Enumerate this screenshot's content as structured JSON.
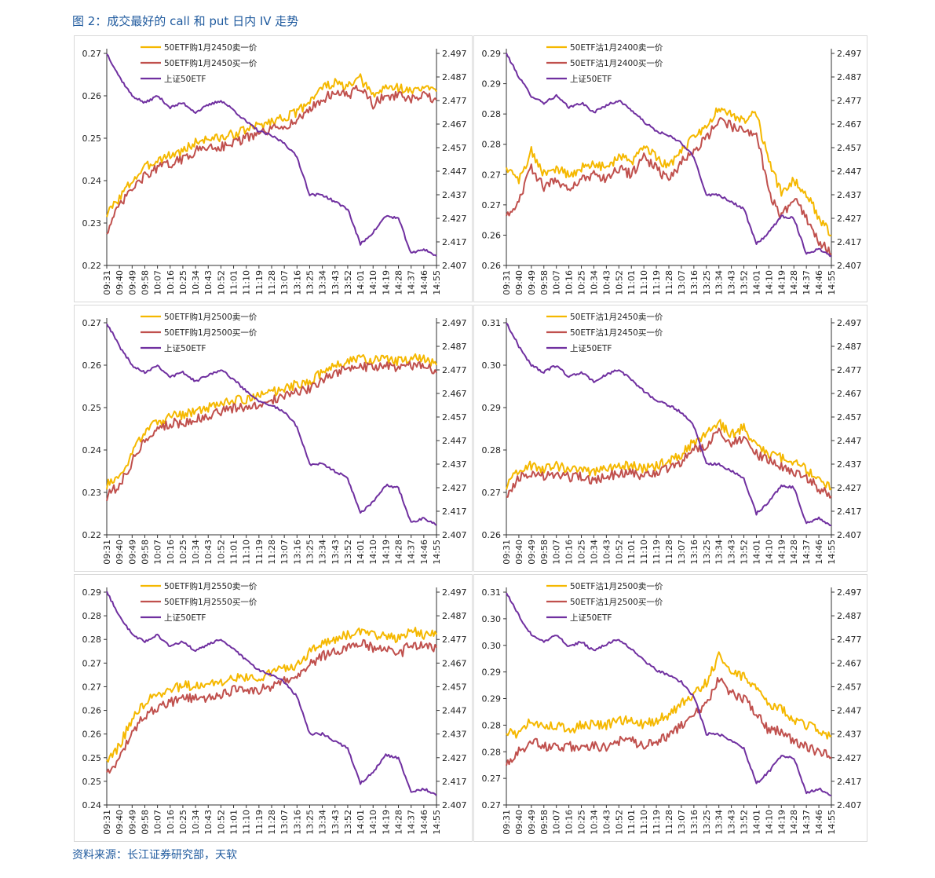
{
  "figure": {
    "title": "图 2：成交最好的 call 和 put 日内 IV 走势",
    "source": "资料来源：长江证券研究部，天软"
  },
  "colors": {
    "yellow": "#f5b800",
    "red": "#c0504d",
    "purple": "#7030a0",
    "title_blue": "#1f5a9e"
  },
  "time_ticks": [
    "09:31",
    "09:40",
    "09:49",
    "09:58",
    "10:07",
    "10:16",
    "10:25",
    "10:34",
    "10:43",
    "10:52",
    "11:01",
    "11:10",
    "11:19",
    "11:28",
    "13:07",
    "13:16",
    "13:25",
    "13:34",
    "13:43",
    "13:52",
    "14:01",
    "14:10",
    "14:19",
    "14:28",
    "14:37",
    "14:46",
    "14:55"
  ],
  "chart_data": [
    {
      "type": "line",
      "panel": "top-left",
      "x": [
        "09:31",
        "09:40",
        "09:49",
        "09:58",
        "10:07",
        "10:16",
        "10:25",
        "10:34",
        "10:43",
        "10:52",
        "11:01",
        "11:10",
        "11:19",
        "11:28",
        "13:07",
        "13:16",
        "13:25",
        "13:34",
        "13:43",
        "13:52",
        "14:01",
        "14:10",
        "14:19",
        "14:28",
        "14:37",
        "14:46",
        "14:55"
      ],
      "left_ticks": [
        "0.27",
        "0.26",
        "0.25",
        "0.24",
        "0.23",
        "0.22"
      ],
      "right_ticks": [
        "2.497",
        "2.487",
        "2.477",
        "2.467",
        "2.457",
        "2.447",
        "2.437",
        "2.427",
        "2.417",
        "2.407"
      ],
      "ylim": [
        0.22,
        0.27
      ],
      "y2lim": [
        2.407,
        2.497
      ],
      "legend_position": "top-center",
      "series": [
        {
          "name": "50ETF购1月2450卖一价",
          "axis": "left",
          "color": "#f5b800",
          "values": [
            0.232,
            0.236,
            0.24,
            0.243,
            0.245,
            0.246,
            0.247,
            0.249,
            0.25,
            0.25,
            0.251,
            0.252,
            0.253,
            0.254,
            0.255,
            0.256,
            0.259,
            0.262,
            0.263,
            0.262,
            0.264,
            0.26,
            0.262,
            0.262,
            0.261,
            0.262,
            0.261
          ]
        },
        {
          "name": "50ETF购1月2450买一价",
          "axis": "left",
          "color": "#c0504d",
          "values": [
            0.228,
            0.234,
            0.238,
            0.241,
            0.243,
            0.244,
            0.245,
            0.247,
            0.248,
            0.248,
            0.249,
            0.25,
            0.251,
            0.252,
            0.253,
            0.254,
            0.257,
            0.259,
            0.261,
            0.26,
            0.262,
            0.258,
            0.26,
            0.26,
            0.259,
            0.26,
            0.259
          ]
        },
        {
          "name": "上证50ETF",
          "axis": "right",
          "color": "#7030a0",
          "values": [
            2.497,
            2.487,
            2.479,
            2.476,
            2.479,
            2.474,
            2.476,
            2.472,
            2.475,
            2.477,
            2.473,
            2.468,
            2.464,
            2.462,
            2.459,
            2.453,
            2.437,
            2.437,
            2.434,
            2.431,
            2.416,
            2.421,
            2.428,
            2.427,
            2.412,
            2.414,
            2.411
          ]
        }
      ]
    },
    {
      "type": "line",
      "panel": "top-right",
      "x": [
        "09:31",
        "09:40",
        "09:49",
        "09:58",
        "10:07",
        "10:16",
        "10:25",
        "10:34",
        "10:43",
        "10:52",
        "11:01",
        "11:10",
        "11:19",
        "11:28",
        "13:07",
        "13:16",
        "13:25",
        "13:34",
        "13:43",
        "13:52",
        "14:01",
        "14:10",
        "14:19",
        "14:28",
        "14:37",
        "14:46",
        "14:55"
      ],
      "left_ticks": [
        "0.29",
        "0.29",
        "0.28",
        "0.28",
        "0.27",
        "0.27",
        "0.26",
        "0.26"
      ],
      "right_ticks": [
        "2.497",
        "2.487",
        "2.477",
        "2.467",
        "2.457",
        "2.447",
        "2.437",
        "2.427",
        "2.417",
        "2.407"
      ],
      "ylim": [
        0.26,
        0.295
      ],
      "y2lim": [
        2.407,
        2.497
      ],
      "legend_position": "top-center",
      "series": [
        {
          "name": "50ETF沽1月2400卖一价",
          "axis": "left",
          "color": "#f5b800",
          "values": [
            0.276,
            0.274,
            0.279,
            0.275,
            0.276,
            0.275,
            0.276,
            0.277,
            0.276,
            0.278,
            0.277,
            0.28,
            0.278,
            0.276,
            0.279,
            0.281,
            0.283,
            0.286,
            0.285,
            0.284,
            0.285,
            0.277,
            0.272,
            0.274,
            0.272,
            0.268,
            0.265
          ]
        },
        {
          "name": "50ETF沽1月2400买一价",
          "axis": "left",
          "color": "#c0504d",
          "values": [
            0.268,
            0.271,
            0.276,
            0.273,
            0.274,
            0.273,
            0.274,
            0.275,
            0.274,
            0.276,
            0.275,
            0.278,
            0.276,
            0.274,
            0.277,
            0.279,
            0.281,
            0.284,
            0.283,
            0.282,
            0.282,
            0.272,
            0.268,
            0.271,
            0.268,
            0.264,
            0.262
          ]
        },
        {
          "name": "上证50ETF",
          "axis": "right",
          "color": "#7030a0",
          "values": [
            2.497,
            2.487,
            2.479,
            2.476,
            2.479,
            2.474,
            2.476,
            2.472,
            2.475,
            2.477,
            2.473,
            2.468,
            2.464,
            2.462,
            2.459,
            2.453,
            2.437,
            2.437,
            2.434,
            2.431,
            2.416,
            2.421,
            2.428,
            2.427,
            2.412,
            2.414,
            2.411
          ]
        }
      ]
    },
    {
      "type": "line",
      "panel": "middle-left",
      "x": [
        "09:31",
        "09:40",
        "09:49",
        "09:58",
        "10:07",
        "10:16",
        "10:25",
        "10:34",
        "10:43",
        "10:52",
        "11:01",
        "11:10",
        "11:19",
        "11:28",
        "13:07",
        "13:16",
        "13:25",
        "13:34",
        "13:43",
        "13:52",
        "14:01",
        "14:10",
        "14:19",
        "14:28",
        "14:37",
        "14:46",
        "14:55"
      ],
      "left_ticks": [
        "0.27",
        "0.26",
        "0.25",
        "0.24",
        "0.23",
        "0.22"
      ],
      "right_ticks": [
        "2.497",
        "2.487",
        "2.477",
        "2.467",
        "2.457",
        "2.447",
        "2.437",
        "2.427",
        "2.417",
        "2.407"
      ],
      "ylim": [
        0.22,
        0.275
      ],
      "y2lim": [
        2.407,
        2.497
      ],
      "legend_position": "top-center",
      "series": [
        {
          "name": "50ETF购1月2500卖一价",
          "axis": "left",
          "color": "#f5b800",
          "values": [
            0.233,
            0.235,
            0.241,
            0.247,
            0.249,
            0.251,
            0.251,
            0.252,
            0.253,
            0.254,
            0.255,
            0.255,
            0.256,
            0.257,
            0.258,
            0.259,
            0.26,
            0.262,
            0.264,
            0.265,
            0.266,
            0.265,
            0.266,
            0.265,
            0.266,
            0.266,
            0.264
          ]
        },
        {
          "name": "50ETF购1月2500买一价",
          "axis": "left",
          "color": "#c0504d",
          "values": [
            0.23,
            0.233,
            0.239,
            0.245,
            0.247,
            0.249,
            0.249,
            0.25,
            0.251,
            0.252,
            0.253,
            0.253,
            0.254,
            0.255,
            0.256,
            0.257,
            0.258,
            0.26,
            0.262,
            0.263,
            0.264,
            0.263,
            0.264,
            0.263,
            0.264,
            0.264,
            0.262
          ]
        },
        {
          "name": "上证50ETF",
          "axis": "right",
          "color": "#7030a0",
          "values": [
            2.497,
            2.487,
            2.479,
            2.476,
            2.479,
            2.474,
            2.476,
            2.472,
            2.475,
            2.477,
            2.473,
            2.468,
            2.464,
            2.462,
            2.459,
            2.453,
            2.437,
            2.437,
            2.434,
            2.431,
            2.416,
            2.421,
            2.428,
            2.427,
            2.412,
            2.414,
            2.411
          ]
        }
      ]
    },
    {
      "type": "line",
      "panel": "middle-right",
      "x": [
        "09:31",
        "09:40",
        "09:49",
        "09:58",
        "10:07",
        "10:16",
        "10:25",
        "10:34",
        "10:43",
        "10:52",
        "11:01",
        "11:10",
        "11:19",
        "11:28",
        "13:07",
        "13:16",
        "13:25",
        "13:34",
        "13:43",
        "13:52",
        "14:01",
        "14:10",
        "14:19",
        "14:28",
        "14:37",
        "14:46",
        "14:55"
      ],
      "left_ticks": [
        "0.31",
        "0.30",
        "0.29",
        "0.28",
        "0.27",
        "0.26"
      ],
      "right_ticks": [
        "2.497",
        "2.487",
        "2.477",
        "2.467",
        "2.457",
        "2.447",
        "2.437",
        "2.427",
        "2.417",
        "2.407"
      ],
      "ylim": [
        0.26,
        0.315
      ],
      "y2lim": [
        2.407,
        2.497
      ],
      "legend_position": "top-center",
      "series": [
        {
          "name": "50ETF沽1月2450卖一价",
          "axis": "left",
          "color": "#f5b800",
          "values": [
            0.272,
            0.277,
            0.278,
            0.277,
            0.278,
            0.277,
            0.277,
            0.276,
            0.277,
            0.278,
            0.278,
            0.277,
            0.278,
            0.279,
            0.281,
            0.284,
            0.286,
            0.289,
            0.286,
            0.288,
            0.283,
            0.281,
            0.28,
            0.279,
            0.277,
            0.274,
            0.272
          ]
        },
        {
          "name": "50ETF沽1月2450买一价",
          "axis": "left",
          "color": "#c0504d",
          "values": [
            0.27,
            0.275,
            0.276,
            0.275,
            0.276,
            0.275,
            0.275,
            0.274,
            0.275,
            0.276,
            0.276,
            0.275,
            0.276,
            0.277,
            0.279,
            0.282,
            0.283,
            0.287,
            0.284,
            0.285,
            0.281,
            0.279,
            0.278,
            0.276,
            0.275,
            0.272,
            0.27
          ]
        },
        {
          "name": "上证50ETF",
          "axis": "right",
          "color": "#7030a0",
          "values": [
            2.497,
            2.487,
            2.479,
            2.476,
            2.479,
            2.474,
            2.476,
            2.472,
            2.475,
            2.477,
            2.473,
            2.468,
            2.464,
            2.462,
            2.459,
            2.453,
            2.437,
            2.437,
            2.434,
            2.431,
            2.416,
            2.421,
            2.428,
            2.427,
            2.412,
            2.414,
            2.411
          ]
        }
      ]
    },
    {
      "type": "line",
      "panel": "bottom-left",
      "x": [
        "09:31",
        "09:40",
        "09:49",
        "09:58",
        "10:07",
        "10:16",
        "10:25",
        "10:34",
        "10:43",
        "10:52",
        "11:01",
        "11:10",
        "11:19",
        "11:28",
        "13:07",
        "13:16",
        "13:25",
        "13:34",
        "13:43",
        "13:52",
        "14:01",
        "14:10",
        "14:19",
        "14:28",
        "14:37",
        "14:46",
        "14:55"
      ],
      "left_ticks": [
        "0.29",
        "0.28",
        "0.28",
        "0.27",
        "0.27",
        "0.26",
        "0.26",
        "0.25",
        "0.25",
        "0.24"
      ],
      "right_ticks": [
        "2.497",
        "2.487",
        "2.477",
        "2.467",
        "2.457",
        "2.447",
        "2.437",
        "2.427",
        "2.417",
        "2.407"
      ],
      "ylim": [
        0.24,
        0.29
      ],
      "y2lim": [
        2.407,
        2.497
      ],
      "legend_position": "top-center",
      "series": [
        {
          "name": "50ETF购1月2550卖一价",
          "axis": "left",
          "color": "#f5b800",
          "values": [
            0.25,
            0.254,
            0.26,
            0.264,
            0.266,
            0.267,
            0.268,
            0.268,
            0.268,
            0.269,
            0.27,
            0.27,
            0.27,
            0.271,
            0.272,
            0.273,
            0.276,
            0.278,
            0.279,
            0.28,
            0.281,
            0.28,
            0.28,
            0.279,
            0.281,
            0.28,
            0.28
          ]
        },
        {
          "name": "50ETF购1月2550买一价",
          "axis": "left",
          "color": "#c0504d",
          "values": [
            0.247,
            0.251,
            0.257,
            0.261,
            0.263,
            0.264,
            0.265,
            0.265,
            0.265,
            0.266,
            0.267,
            0.267,
            0.267,
            0.268,
            0.269,
            0.27,
            0.273,
            0.275,
            0.276,
            0.277,
            0.278,
            0.277,
            0.277,
            0.275,
            0.278,
            0.277,
            0.277
          ]
        },
        {
          "name": "上证50ETF",
          "axis": "right",
          "color": "#7030a0",
          "values": [
            2.497,
            2.487,
            2.479,
            2.476,
            2.479,
            2.474,
            2.476,
            2.472,
            2.475,
            2.477,
            2.473,
            2.468,
            2.464,
            2.462,
            2.459,
            2.453,
            2.437,
            2.437,
            2.434,
            2.431,
            2.416,
            2.421,
            2.428,
            2.427,
            2.412,
            2.414,
            2.411
          ]
        }
      ]
    },
    {
      "type": "line",
      "panel": "bottom-right",
      "x": [
        "09:31",
        "09:40",
        "09:49",
        "09:58",
        "10:07",
        "10:16",
        "10:25",
        "10:34",
        "10:43",
        "10:52",
        "11:01",
        "11:10",
        "11:19",
        "11:28",
        "13:07",
        "13:16",
        "13:25",
        "13:34",
        "13:43",
        "13:52",
        "14:01",
        "14:10",
        "14:19",
        "14:28",
        "14:37",
        "14:46",
        "14:55"
      ],
      "left_ticks": [
        "0.31",
        "0.30",
        "0.30",
        "0.29",
        "0.29",
        "0.28",
        "0.28",
        "0.27",
        "0.27"
      ],
      "right_ticks": [
        "2.497",
        "2.487",
        "2.477",
        "2.467",
        "2.457",
        "2.447",
        "2.437",
        "2.427",
        "2.417",
        "2.407"
      ],
      "ylim": [
        0.27,
        0.31
      ],
      "y2lim": [
        2.407,
        2.497
      ],
      "legend_position": "top-center",
      "series": [
        {
          "name": "50ETF沽1月2500卖一价",
          "axis": "left",
          "color": "#f5b800",
          "values": [
            0.284,
            0.283,
            0.286,
            0.285,
            0.285,
            0.284,
            0.285,
            0.285,
            0.285,
            0.286,
            0.286,
            0.285,
            0.286,
            0.287,
            0.289,
            0.291,
            0.293,
            0.298,
            0.295,
            0.294,
            0.292,
            0.289,
            0.288,
            0.286,
            0.285,
            0.284,
            0.283
          ]
        },
        {
          "name": "50ETF沽1月2500买一价",
          "axis": "left",
          "color": "#c0504d",
          "values": [
            0.278,
            0.28,
            0.282,
            0.281,
            0.281,
            0.281,
            0.281,
            0.281,
            0.281,
            0.282,
            0.282,
            0.281,
            0.282,
            0.283,
            0.285,
            0.287,
            0.289,
            0.294,
            0.291,
            0.29,
            0.287,
            0.284,
            0.284,
            0.282,
            0.281,
            0.28,
            0.279
          ]
        },
        {
          "name": "上证50ETF",
          "axis": "right",
          "color": "#7030a0",
          "values": [
            2.497,
            2.487,
            2.479,
            2.476,
            2.479,
            2.474,
            2.476,
            2.472,
            2.475,
            2.477,
            2.473,
            2.468,
            2.464,
            2.462,
            2.459,
            2.453,
            2.437,
            2.437,
            2.434,
            2.431,
            2.416,
            2.421,
            2.428,
            2.427,
            2.412,
            2.414,
            2.411
          ]
        }
      ]
    }
  ]
}
